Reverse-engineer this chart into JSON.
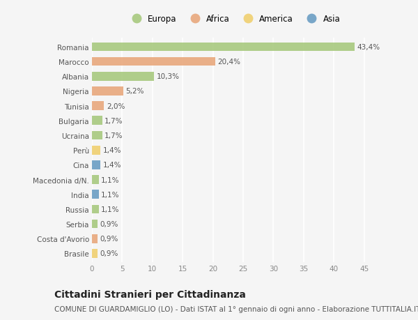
{
  "categories": [
    "Romania",
    "Marocco",
    "Albania",
    "Nigeria",
    "Tunisia",
    "Bulgaria",
    "Ucraina",
    "Perù",
    "Cina",
    "Macedonia d/N.",
    "India",
    "Russia",
    "Serbia",
    "Costa d'Avorio",
    "Brasile"
  ],
  "values": [
    43.4,
    20.4,
    10.3,
    5.2,
    2.0,
    1.7,
    1.7,
    1.4,
    1.4,
    1.1,
    1.1,
    1.1,
    0.9,
    0.9,
    0.9
  ],
  "labels": [
    "43,4%",
    "20,4%",
    "10,3%",
    "5,2%",
    "2,0%",
    "1,7%",
    "1,7%",
    "1,4%",
    "1,4%",
    "1,1%",
    "1,1%",
    "1,1%",
    "0,9%",
    "0,9%",
    "0,9%"
  ],
  "continents": [
    "Europa",
    "Africa",
    "Europa",
    "Africa",
    "Africa",
    "Europa",
    "Europa",
    "America",
    "Asia",
    "Europa",
    "Asia",
    "Europa",
    "Europa",
    "Africa",
    "America"
  ],
  "continent_colors": {
    "Europa": "#a8c97f",
    "Africa": "#e8a87c",
    "America": "#f0d070",
    "Asia": "#6b9ec4"
  },
  "legend_order": [
    "Europa",
    "Africa",
    "America",
    "Asia"
  ],
  "title": "Cittadini Stranieri per Cittadinanza",
  "subtitle": "COMUNE DI GUARDAMIGLIO (LO) - Dati ISTAT al 1° gennaio di ogni anno - Elaborazione TUTTITALIA.IT",
  "xlim": [
    0,
    47
  ],
  "xticks": [
    0,
    5,
    10,
    15,
    20,
    25,
    30,
    35,
    40,
    45
  ],
  "background_color": "#f5f5f5",
  "plot_bg_color": "#f5f5f5",
  "grid_color": "#ffffff",
  "bar_height": 0.6,
  "title_fontsize": 10,
  "subtitle_fontsize": 7.5,
  "label_fontsize": 7.5,
  "tick_fontsize": 7.5,
  "legend_fontsize": 8.5
}
